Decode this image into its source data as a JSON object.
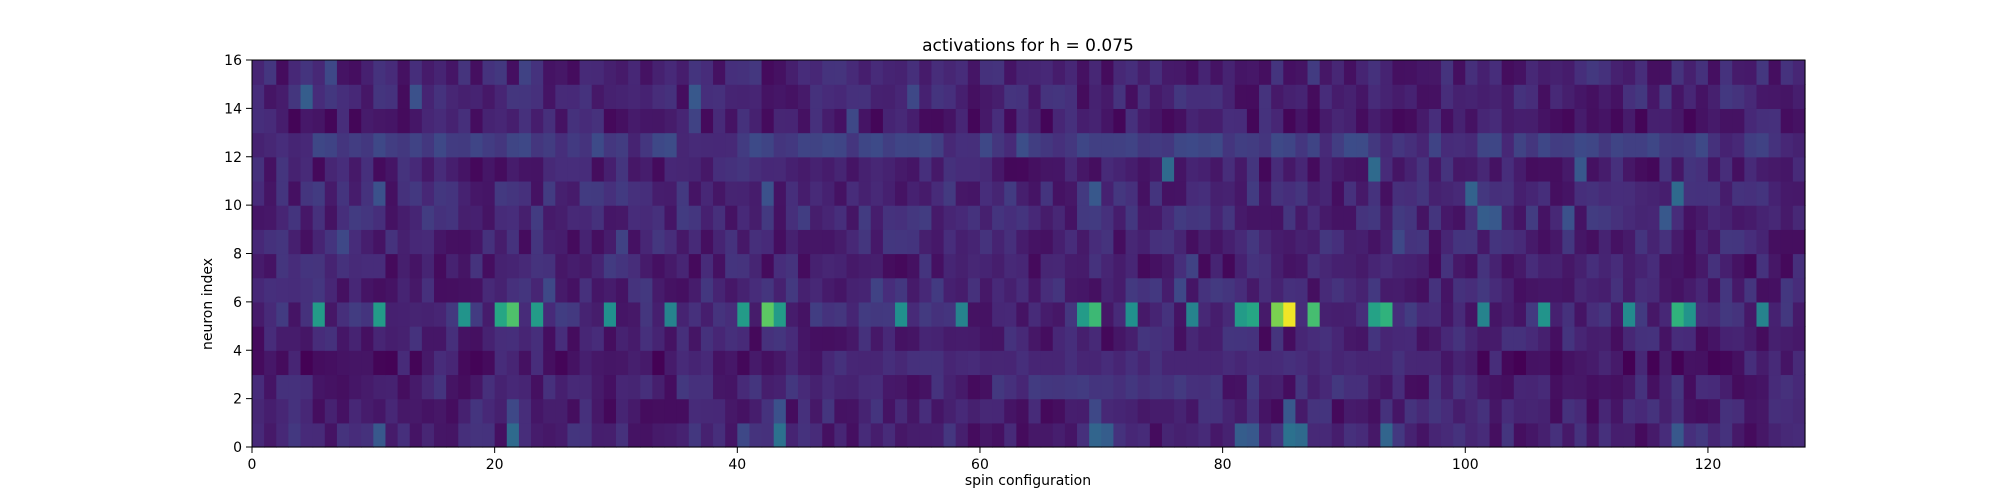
{
  "chart_data": {
    "type": "heatmap",
    "title": "activations for h = 0.075",
    "xlabel": "spin configuration",
    "ylabel": "neuron index",
    "xlim": [
      0,
      128
    ],
    "ylim": [
      0,
      16
    ],
    "xticks": [
      0,
      20,
      40,
      60,
      80,
      100,
      120
    ],
    "yticks": [
      0,
      2,
      4,
      6,
      8,
      10,
      12,
      14,
      16
    ],
    "n_cols": 128,
    "n_rows": 16,
    "colormap": "viridis",
    "value_range": [
      0,
      1
    ],
    "grid": false,
    "rows": [
      {
        "index": 0,
        "base": 0.1,
        "peaks": [
          [
            10,
            0.28
          ],
          [
            21,
            0.35
          ],
          [
            40,
            0.22
          ],
          [
            43,
            0.38
          ],
          [
            69,
            0.33
          ],
          [
            70,
            0.3
          ],
          [
            81,
            0.3
          ],
          [
            82,
            0.28
          ],
          [
            85,
            0.38
          ],
          [
            86,
            0.35
          ],
          [
            93,
            0.33
          ],
          [
            117,
            0.28
          ]
        ]
      },
      {
        "index": 1,
        "base": 0.09,
        "peaks": [
          [
            21,
            0.22
          ],
          [
            43,
            0.25
          ],
          [
            69,
            0.22
          ],
          [
            85,
            0.28
          ]
        ]
      },
      {
        "index": 2,
        "base": 0.1,
        "peaks": []
      },
      {
        "index": 3,
        "base": 0.07,
        "peaks": []
      },
      {
        "index": 4,
        "base": 0.09,
        "peaks": [
          [
            13,
            0.15
          ],
          [
            39,
            0.14
          ]
        ]
      },
      {
        "index": 5,
        "base": 0.12,
        "peaks": [
          [
            5,
            0.55
          ],
          [
            10,
            0.55
          ],
          [
            17,
            0.52
          ],
          [
            20,
            0.6
          ],
          [
            21,
            0.72
          ],
          [
            23,
            0.55
          ],
          [
            29,
            0.5
          ],
          [
            34,
            0.45
          ],
          [
            40,
            0.55
          ],
          [
            42,
            0.75
          ],
          [
            43,
            0.55
          ],
          [
            53,
            0.5
          ],
          [
            58,
            0.45
          ],
          [
            68,
            0.55
          ],
          [
            69,
            0.68
          ],
          [
            72,
            0.5
          ],
          [
            77,
            0.45
          ],
          [
            81,
            0.55
          ],
          [
            82,
            0.6
          ],
          [
            84,
            0.8
          ],
          [
            85,
            0.98
          ],
          [
            87,
            0.7
          ],
          [
            92,
            0.58
          ],
          [
            93,
            0.65
          ],
          [
            101,
            0.45
          ],
          [
            106,
            0.52
          ],
          [
            113,
            0.48
          ],
          [
            117,
            0.65
          ],
          [
            118,
            0.52
          ],
          [
            124,
            0.45
          ]
        ]
      },
      {
        "index": 6,
        "base": 0.11,
        "peaks": [
          [
            24,
            0.22
          ],
          [
            51,
            0.2
          ],
          [
            76,
            0.22
          ]
        ]
      },
      {
        "index": 7,
        "base": 0.09,
        "peaks": [
          [
            29,
            0.18
          ],
          [
            77,
            0.2
          ]
        ]
      },
      {
        "index": 8,
        "base": 0.1,
        "peaks": [
          [
            7,
            0.22
          ],
          [
            30,
            0.2
          ],
          [
            94,
            0.22
          ]
        ]
      },
      {
        "index": 9,
        "base": 0.12,
        "peaks": [
          [
            101,
            0.3
          ],
          [
            102,
            0.28
          ],
          [
            108,
            0.25
          ],
          [
            116,
            0.28
          ]
        ]
      },
      {
        "index": 10,
        "base": 0.11,
        "peaks": [
          [
            10,
            0.25
          ],
          [
            42,
            0.25
          ],
          [
            69,
            0.28
          ],
          [
            100,
            0.32
          ],
          [
            117,
            0.35
          ]
        ]
      },
      {
        "index": 11,
        "base": 0.09,
        "peaks": [
          [
            75,
            0.35
          ],
          [
            92,
            0.35
          ],
          [
            109,
            0.28
          ]
        ]
      },
      {
        "index": 12,
        "base": 0.17,
        "peaks": [
          [
            0,
            0.1
          ],
          [
            80,
            0.1
          ],
          [
            127,
            0.1
          ]
        ]
      },
      {
        "index": 13,
        "base": 0.08,
        "peaks": [
          [
            36,
            0.2
          ],
          [
            49,
            0.22
          ]
        ]
      },
      {
        "index": 14,
        "base": 0.1,
        "peaks": [
          [
            4,
            0.3
          ],
          [
            13,
            0.25
          ],
          [
            36,
            0.28
          ],
          [
            54,
            0.22
          ]
        ]
      },
      {
        "index": 15,
        "base": 0.1,
        "peaks": [
          [
            6,
            0.22
          ],
          [
            22,
            0.2
          ],
          [
            87,
            0.18
          ]
        ]
      }
    ],
    "bands": [
      {
        "row": 12,
        "from": 8,
        "to": 24,
        "value": 0.18
      },
      {
        "row": 12,
        "from": 40,
        "to": 56,
        "value": 0.18
      },
      {
        "row": 12,
        "from": 72,
        "to": 88,
        "value": 0.18
      },
      {
        "row": 12,
        "from": 104,
        "to": 120,
        "value": 0.18
      },
      {
        "row": 2,
        "from": 64,
        "to": 80,
        "value": 0.16
      },
      {
        "row": 3,
        "from": 48,
        "to": 96,
        "value": 0.13
      }
    ]
  }
}
